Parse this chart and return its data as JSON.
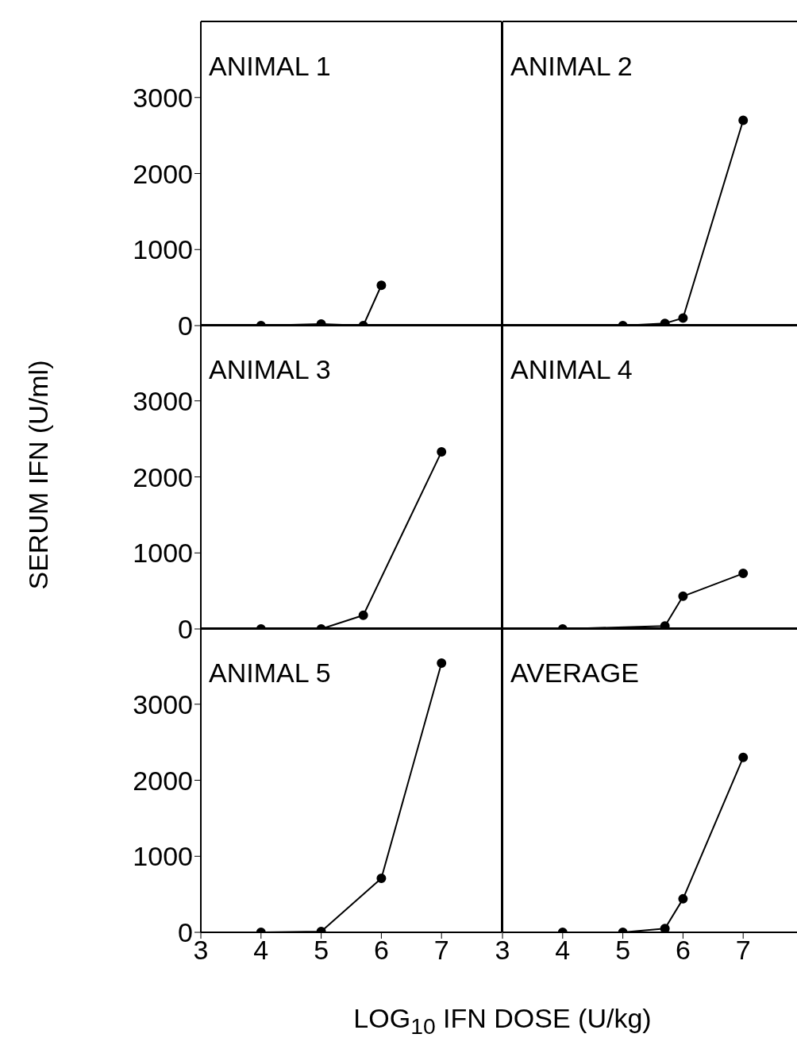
{
  "chart_data": [
    {
      "type": "line",
      "title": "ANIMAL 1",
      "x": [
        4,
        5,
        5.7,
        6
      ],
      "values": [
        0,
        20,
        0,
        530
      ],
      "color": "#000000",
      "marker": "circle",
      "xlim": [
        3,
        8
      ],
      "xticks": [
        3,
        4,
        5,
        6,
        7
      ],
      "ylim": [
        0,
        4000
      ],
      "yticks": [
        0,
        1000,
        2000,
        3000
      ],
      "tick_labels": "y"
    },
    {
      "type": "line",
      "title": "ANIMAL 2",
      "x": [
        5,
        5.7,
        6,
        7
      ],
      "values": [
        0,
        30,
        100,
        2700
      ],
      "color": "#000000",
      "marker": "circle",
      "xlim": [
        3,
        8
      ],
      "xticks": [
        3,
        4,
        5,
        6,
        7
      ],
      "ylim": [
        0,
        4000
      ],
      "yticks": [
        0,
        1000,
        2000,
        3000
      ],
      "tick_labels": false
    },
    {
      "type": "line",
      "title": "ANIMAL 3",
      "ylabel": "SERUM IFN (U/ml)",
      "x": [
        4,
        5,
        5.7,
        7
      ],
      "values": [
        0,
        0,
        180,
        2330
      ],
      "color": "#000000",
      "marker": "circle",
      "xlim": [
        3,
        8
      ],
      "xticks": [
        3,
        4,
        5,
        6,
        7
      ],
      "ylim": [
        0,
        4000
      ],
      "yticks": [
        0,
        1000,
        2000,
        3000
      ],
      "tick_labels": "y"
    },
    {
      "type": "line",
      "title": "ANIMAL 4",
      "x": [
        4,
        5.7,
        6,
        7
      ],
      "values": [
        0,
        40,
        430,
        730
      ],
      "color": "#000000",
      "marker": "circle",
      "xlim": [
        3,
        8
      ],
      "xticks": [
        3,
        4,
        5,
        6,
        7
      ],
      "ylim": [
        0,
        4000
      ],
      "yticks": [
        0,
        1000,
        2000,
        3000
      ],
      "tick_labels": false
    },
    {
      "type": "line",
      "title": "ANIMAL 5",
      "xlabel": "LOG$_{10}$ IFN DOSE (U/kg)",
      "x": [
        4,
        5,
        6,
        7
      ],
      "values": [
        0,
        10,
        710,
        3540
      ],
      "color": "#000000",
      "marker": "circle",
      "xlim": [
        3,
        8
      ],
      "xticks": [
        3,
        4,
        5,
        6,
        7
      ],
      "ylim": [
        0,
        4000
      ],
      "yticks": [
        0,
        1000,
        2000,
        3000
      ]
    },
    {
      "type": "line",
      "title": "AVERAGE",
      "x": [
        4,
        5,
        5.7,
        6,
        7
      ],
      "values": [
        0,
        0,
        50,
        440,
        2300
      ],
      "color": "#000000",
      "marker": "circle",
      "xlim": [
        3,
        8
      ],
      "xticks": [
        3,
        4,
        5,
        6,
        7
      ],
      "ylim": [
        0,
        4000
      ],
      "yticks": [
        0,
        1000,
        2000,
        3000
      ],
      "tick_labels": "x"
    }
  ]
}
